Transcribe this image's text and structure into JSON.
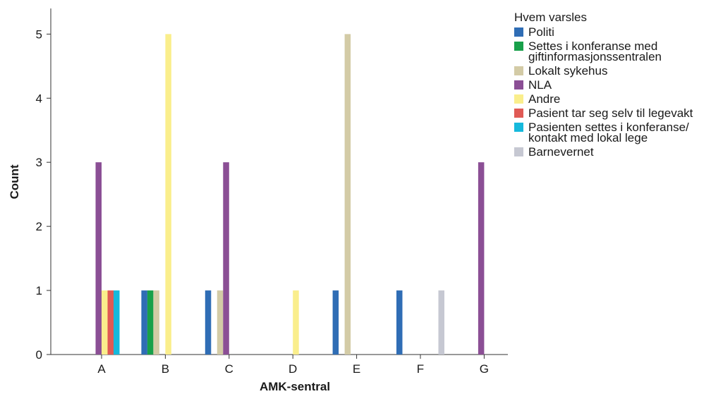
{
  "chart_data": {
    "type": "bar",
    "xlabel": "AMK-sentral",
    "ylabel": "Count",
    "ylim": [
      0,
      5.4
    ],
    "yticks": [
      0,
      1,
      2,
      3,
      4,
      5
    ],
    "categories": [
      "A",
      "B",
      "C",
      "D",
      "E",
      "F",
      "G"
    ],
    "grid": false,
    "legend_position": "top-right",
    "legend_title": "Hvem varsles",
    "series": [
      {
        "name": "Politi",
        "color": "#2f6db5",
        "values": [
          0,
          1,
          1,
          0,
          1,
          1,
          0
        ]
      },
      {
        "name": "Settes i konferanse med giftinformasjonssentralen",
        "color": "#18a04a",
        "values": [
          0,
          1,
          0,
          0,
          0,
          0,
          0
        ]
      },
      {
        "name": "Lokalt sykehus",
        "color": "#d3cba6",
        "values": [
          0,
          1,
          1,
          0,
          5,
          0,
          0
        ]
      },
      {
        "name": "NLA",
        "color": "#8b4f95",
        "values": [
          3,
          0,
          3,
          0,
          0,
          0,
          3
        ]
      },
      {
        "name": "Andre",
        "color": "#faee8c",
        "values": [
          1,
          5,
          0,
          1,
          0,
          0,
          0
        ]
      },
      {
        "name": "Pasient tar seg selv til legevakt",
        "color": "#e05a55",
        "values": [
          1,
          0,
          0,
          0,
          0,
          0,
          0
        ]
      },
      {
        "name": "Pasienten settes i konferanse/ kontakt med lokal lege",
        "color": "#16b9dc",
        "values": [
          1,
          0,
          0,
          0,
          0,
          0,
          0
        ]
      },
      {
        "name": "Barnevernet",
        "color": "#c6c8d2",
        "values": [
          0,
          0,
          0,
          0,
          0,
          1,
          0
        ]
      }
    ]
  }
}
